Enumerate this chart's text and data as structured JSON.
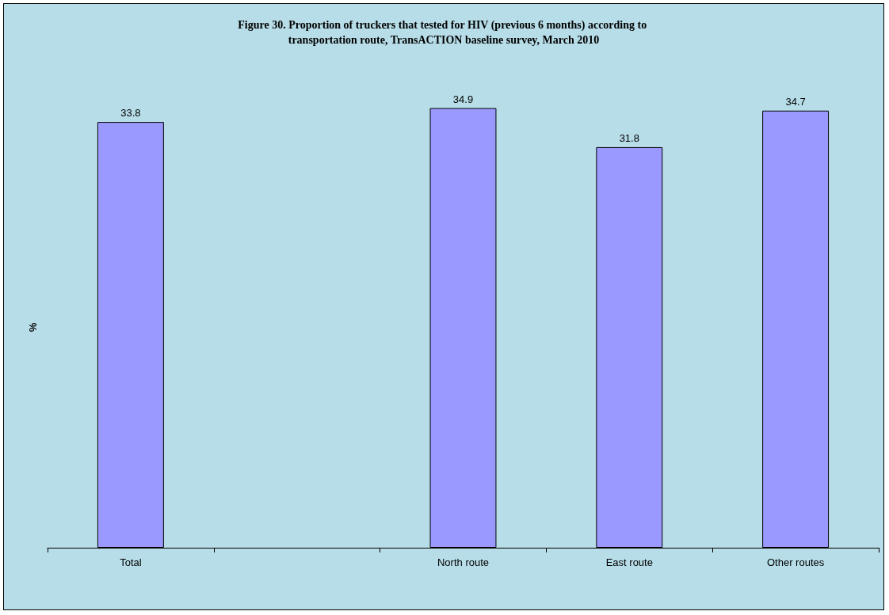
{
  "chart_data": {
    "type": "bar",
    "title": "Figure 30. Proportion of truckers that tested for HIV (previous 6 months) according to transportation route, TransACTION baseline survey, March 2010",
    "ylabel": "%",
    "categories": [
      "Total",
      null,
      "North route",
      "East route",
      "Other routes"
    ],
    "values": [
      33.8,
      null,
      34.9,
      31.8,
      34.7
    ],
    "color": "#9999ff",
    "data_labels": true,
    "grid": false
  }
}
